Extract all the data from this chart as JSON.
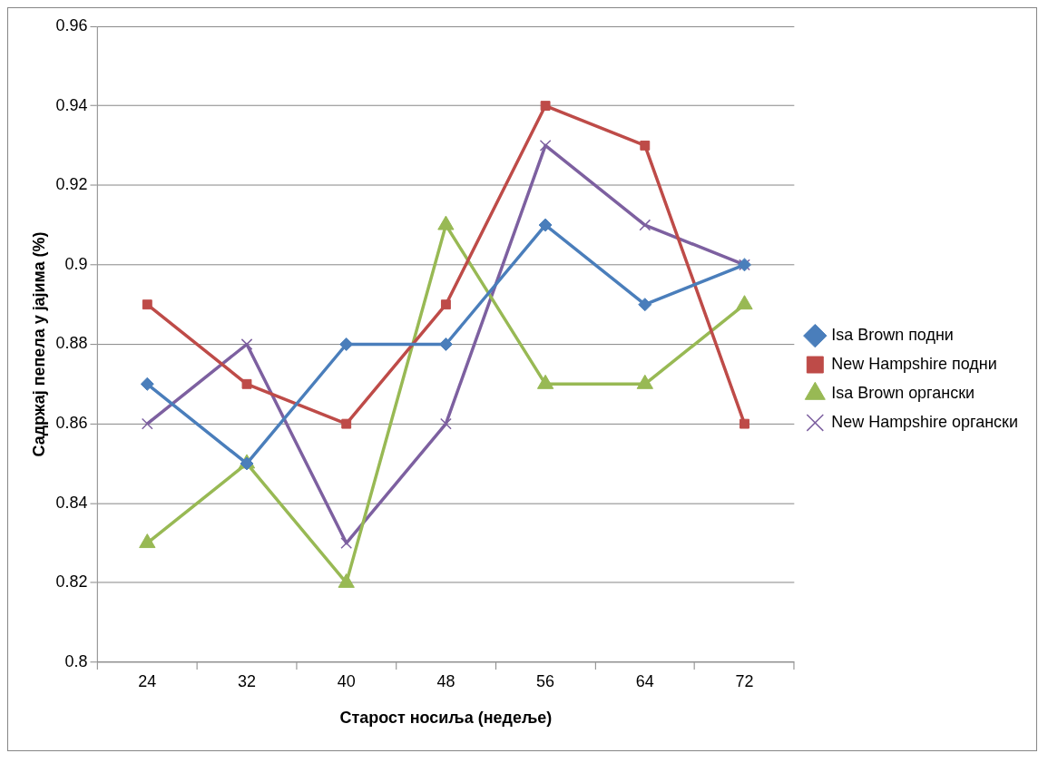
{
  "chart_data": {
    "type": "line",
    "xlabel": "Старост носиља (недеље)",
    "ylabel": "Садржај пепела у јајима (%)",
    "categories": [
      "24",
      "32",
      "40",
      "48",
      "56",
      "64",
      "72"
    ],
    "ylim": [
      0.8,
      0.96
    ],
    "yticks": [
      0.8,
      0.82,
      0.84,
      0.86,
      0.88,
      0.9,
      0.92,
      0.94,
      0.96
    ],
    "grid": "y",
    "legend": "right",
    "series": [
      {
        "name": "Isa Brown подни",
        "color": "#4a7ebb",
        "marker": "diamond",
        "values": [
          0.87,
          0.85,
          0.88,
          0.88,
          0.91,
          0.89,
          0.9
        ]
      },
      {
        "name": "New Hampshire подни",
        "color": "#be4b48",
        "marker": "square",
        "values": [
          0.89,
          0.87,
          0.86,
          0.89,
          0.94,
          0.93,
          0.86
        ]
      },
      {
        "name": "Isa Brown органски",
        "color": "#98b954",
        "marker": "triangle",
        "values": [
          0.83,
          0.85,
          0.82,
          0.91,
          0.87,
          0.87,
          0.89
        ]
      },
      {
        "name": "New Hampshire органски",
        "color": "#7d60a0",
        "marker": "cross",
        "values": [
          0.86,
          0.88,
          0.83,
          0.86,
          0.93,
          0.91,
          0.9
        ]
      }
    ]
  }
}
